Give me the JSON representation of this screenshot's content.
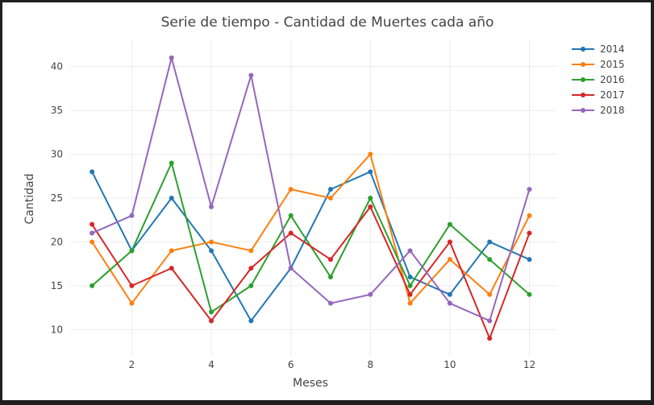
{
  "chart_data": {
    "type": "line",
    "title": "Serie de tiempo - Cantidad de Muertes cada año",
    "xlabel": "Meses",
    "ylabel": "Cantidad",
    "x": [
      1,
      2,
      3,
      4,
      5,
      6,
      7,
      8,
      9,
      10,
      11,
      12
    ],
    "xlim": [
      0.45,
      12.7
    ],
    "ylim": [
      7,
      43
    ],
    "x_ticks": [
      2,
      4,
      6,
      8,
      10,
      12
    ],
    "y_ticks": [
      10,
      15,
      20,
      25,
      30,
      35,
      40
    ],
    "grid": true,
    "legend_position": "top-right",
    "series": [
      {
        "name": "2014",
        "color": "#1f77b4",
        "values": [
          28,
          19,
          25,
          19,
          11,
          17,
          26,
          28,
          16,
          14,
          20,
          18
        ]
      },
      {
        "name": "2015",
        "color": "#ff7f0e",
        "values": [
          20,
          13,
          19,
          20,
          19,
          26,
          25,
          30,
          13,
          18,
          14,
          23
        ]
      },
      {
        "name": "2016",
        "color": "#2ca02c",
        "values": [
          15,
          19,
          29,
          12,
          15,
          23,
          16,
          25,
          15,
          22,
          18,
          14
        ]
      },
      {
        "name": "2017",
        "color": "#d62728",
        "values": [
          22,
          15,
          17,
          11,
          17,
          21,
          18,
          24,
          14,
          20,
          9,
          21
        ]
      },
      {
        "name": "2018",
        "color": "#9467bd",
        "values": [
          21,
          23,
          41,
          24,
          39,
          17,
          13,
          14,
          19,
          13,
          11,
          26
        ]
      }
    ]
  }
}
